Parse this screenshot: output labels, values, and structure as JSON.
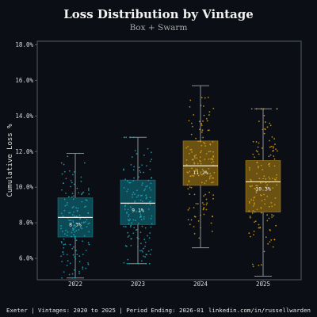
{
  "title": "Loss Distribution by Vintage",
  "subtitle": "Box + Swarm",
  "footer": {
    "left": "Exeter | Vintages: 2020 to 2025 | Period Ending: 2026-01",
    "right": "linkedin.com/in/russellwarden"
  },
  "colors": {
    "background": "#0b0e14",
    "teal": "#1ea7b8",
    "gold": "#d4a017",
    "axis": "#555a62",
    "text": "#dddddd"
  },
  "chart_data": {
    "type": "box",
    "title": "Loss Distribution by Vintage",
    "subtitle": "Box + Swarm",
    "xlabel": "",
    "ylabel": "Cumulative Loss %",
    "ylim": [
      4.8,
      18.2
    ],
    "yticks": [
      6,
      8,
      10,
      12,
      14,
      16,
      18
    ],
    "ytick_labels": [
      "6.0%",
      "8.0%",
      "10.0%",
      "12.0%",
      "14.0%",
      "16.0%",
      "18.0%"
    ],
    "grid": false,
    "categories": [
      "2022",
      "2023",
      "2024",
      "2025"
    ],
    "boxes": [
      {
        "category": "2022",
        "color": "teal",
        "whisker_low": 4.9,
        "q1": 7.2,
        "median": 8.3,
        "q3": 9.4,
        "whisker_high": 11.9,
        "median_label": "8.3%"
      },
      {
        "category": "2023",
        "color": "teal",
        "whisker_low": 5.7,
        "q1": 7.9,
        "median": 9.1,
        "q3": 10.4,
        "whisker_high": 12.8,
        "median_label": "9.1%"
      },
      {
        "category": "2024",
        "color": "gold",
        "whisker_low": 6.6,
        "q1": 10.1,
        "median": 11.2,
        "q3": 12.6,
        "whisker_high": 15.7,
        "median_label": "11.2%"
      },
      {
        "category": "2025",
        "color": "gold",
        "whisker_low": 5.0,
        "q1": 8.6,
        "median": 10.3,
        "q3": 11.5,
        "whisker_high": 14.4,
        "median_label": "10.3%"
      }
    ]
  }
}
